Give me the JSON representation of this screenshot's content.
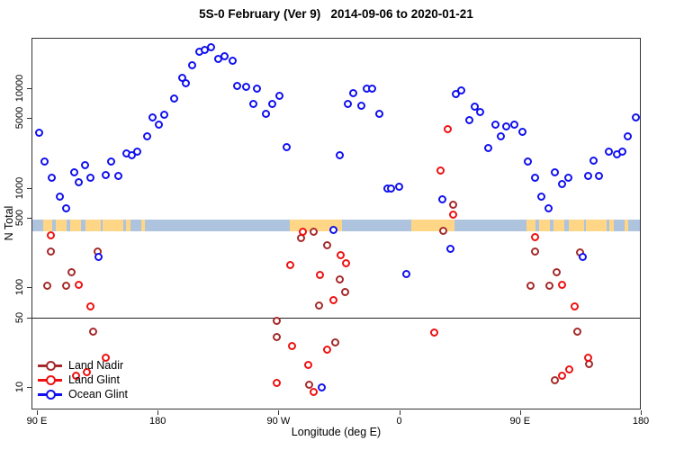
{
  "title": "5S-0 February (Ver 9)   2014-09-06 to 2020-01-21",
  "chart_data": {
    "type": "scatter",
    "title": "5S-0 February (Ver 9)   2014-09-06 to 2020-01-21",
    "xlabel": "Longitude (deg E)",
    "ylabel": "N Total",
    "x_axis": {
      "note": "longitude axis spans 450 deg starting at 90E and wrapping eastward to 180",
      "ticks": [
        {
          "lon": 90,
          "label": "90 E"
        },
        {
          "lon": 180,
          "label": "180"
        },
        {
          "lon": 270,
          "label": "90 W"
        },
        {
          "lon": 360,
          "label": "0"
        },
        {
          "lon": 450,
          "label": "90 E"
        },
        {
          "lon": 540,
          "label": "180"
        }
      ]
    },
    "y_axis": {
      "scale": "log",
      "ticks": [
        10,
        50,
        100,
        500,
        1000,
        5000,
        10000
      ],
      "range": [
        6,
        32000
      ]
    },
    "reference_line_y": 50,
    "map_strip": {
      "description": "land/ocean map strip drawn across the plot near N=400",
      "value_range": [
        366,
        480
      ],
      "ocean_color": "#AEC3DE",
      "land_color": "#FFD685",
      "land_segments_lon": [
        [
          94.7,
          101.4
        ],
        [
          104,
          112
        ],
        [
          114.8,
          122.9
        ],
        [
          126.2,
          137.6
        ],
        [
          139,
          154.4
        ],
        [
          156.4,
          159.7
        ],
        [
          167.8,
          170.5
        ],
        [
          278.4,
          317.3
        ],
        [
          369,
          401.2
        ],
        [
          454.7,
          461.4
        ],
        [
          464,
          472
        ],
        [
          474.8,
          482.9
        ],
        [
          486.2,
          497.6
        ],
        [
          499,
          514.4
        ],
        [
          516.4,
          519.7
        ],
        [
          527.8,
          530.5
        ]
      ]
    },
    "legend_position": "bottom-left",
    "series": [
      {
        "name": "Land Nadir",
        "color": "#A52A2A",
        "points": [
          [
            98,
            103
          ],
          [
            100.5,
            230
          ],
          [
            111.5,
            103
          ],
          [
            116,
            143
          ],
          [
            132,
            36
          ],
          [
            135.5,
            230
          ],
          [
            268.5,
            46
          ],
          [
            269,
            32
          ],
          [
            286.5,
            310
          ],
          [
            293,
            10.6
          ],
          [
            296.5,
            365
          ],
          [
            300.5,
            66
          ],
          [
            306.5,
            262
          ],
          [
            312.5,
            28
          ],
          [
            316,
            121
          ],
          [
            319.5,
            89
          ],
          [
            393,
            370
          ],
          [
            400,
            670
          ],
          [
            458,
            103
          ],
          [
            461,
            230
          ],
          [
            472,
            103
          ],
          [
            476,
            11.6
          ],
          [
            477,
            143
          ],
          [
            492.5,
            36
          ],
          [
            495,
            225
          ],
          [
            501.5,
            17
          ]
        ]
      },
      {
        "name": "Land Glint",
        "color": "#EE1111",
        "points": [
          [
            100.5,
            330
          ],
          [
            119.5,
            13
          ],
          [
            121,
            105
          ],
          [
            127,
            14
          ],
          [
            130,
            65
          ],
          [
            141,
            19.5
          ],
          [
            269,
            11
          ],
          [
            278.5,
            166
          ],
          [
            280,
            26
          ],
          [
            288.5,
            360
          ],
          [
            292,
            16.5
          ],
          [
            296.5,
            9
          ],
          [
            301,
            132
          ],
          [
            306,
            23.5
          ],
          [
            311,
            75
          ],
          [
            316.5,
            210
          ],
          [
            320.5,
            173
          ],
          [
            386,
            35
          ],
          [
            391,
            1500
          ],
          [
            396,
            3840
          ],
          [
            400,
            540
          ],
          [
            461,
            320
          ],
          [
            481,
            13
          ],
          [
            481.5,
            107
          ],
          [
            487,
            15
          ],
          [
            490.5,
            65
          ],
          [
            501,
            19.5
          ]
        ]
      },
      {
        "name": "Ocean Glint",
        "color": "#1111EE",
        "points": [
          [
            92,
            3600
          ],
          [
            96,
            1850
          ],
          [
            101,
            1250
          ],
          [
            107,
            820
          ],
          [
            112,
            615
          ],
          [
            117.5,
            1440
          ],
          [
            121.5,
            1130
          ],
          [
            126,
            1670
          ],
          [
            130,
            1270
          ],
          [
            136,
            200
          ],
          [
            141.5,
            1330
          ],
          [
            145.5,
            1850
          ],
          [
            151,
            1300
          ],
          [
            157,
            2230
          ],
          [
            161,
            2100
          ],
          [
            165,
            2280
          ],
          [
            172,
            3300
          ],
          [
            176,
            5100
          ],
          [
            181,
            4340
          ],
          [
            185,
            5350
          ],
          [
            192,
            7900
          ],
          [
            198,
            12800
          ],
          [
            201,
            11300
          ],
          [
            206,
            16800
          ],
          [
            211,
            23400
          ],
          [
            215,
            24400
          ],
          [
            220,
            25500
          ],
          [
            225,
            19800
          ],
          [
            230,
            21100
          ],
          [
            236,
            19000
          ],
          [
            239.5,
            10600
          ],
          [
            246,
            10200
          ],
          [
            251.5,
            7000
          ],
          [
            254,
            9900
          ],
          [
            261,
            5570
          ],
          [
            265.5,
            6900
          ],
          [
            271,
            8280
          ],
          [
            276,
            2580
          ],
          [
            302,
            10
          ],
          [
            311,
            380
          ],
          [
            316,
            2100
          ],
          [
            322,
            6900
          ],
          [
            326,
            8900
          ],
          [
            331.5,
            6600
          ],
          [
            335.5,
            9900
          ],
          [
            340,
            9900
          ],
          [
            345.5,
            5570
          ],
          [
            351,
            990
          ],
          [
            354,
            990
          ],
          [
            360,
            1030
          ],
          [
            365.5,
            135
          ],
          [
            392,
            760
          ],
          [
            398,
            246
          ],
          [
            402,
            8700
          ],
          [
            406,
            9400
          ],
          [
            412,
            4800
          ],
          [
            416,
            6450
          ],
          [
            420,
            5800
          ],
          [
            426.5,
            2480
          ],
          [
            431.5,
            4340
          ],
          [
            435.5,
            3250
          ],
          [
            439.5,
            4080
          ],
          [
            446,
            4340
          ],
          [
            451.5,
            3670
          ],
          [
            456,
            1850
          ],
          [
            461,
            1270
          ],
          [
            466,
            820
          ],
          [
            471.5,
            615
          ],
          [
            476,
            1440
          ],
          [
            481.5,
            1100
          ],
          [
            486,
            1250
          ],
          [
            496.5,
            200
          ],
          [
            501,
            1300
          ],
          [
            505,
            1880
          ],
          [
            509,
            1300
          ],
          [
            516,
            2280
          ],
          [
            522,
            2150
          ],
          [
            526.5,
            2280
          ],
          [
            530.5,
            3300
          ],
          [
            536.5,
            5100
          ]
        ]
      }
    ]
  }
}
